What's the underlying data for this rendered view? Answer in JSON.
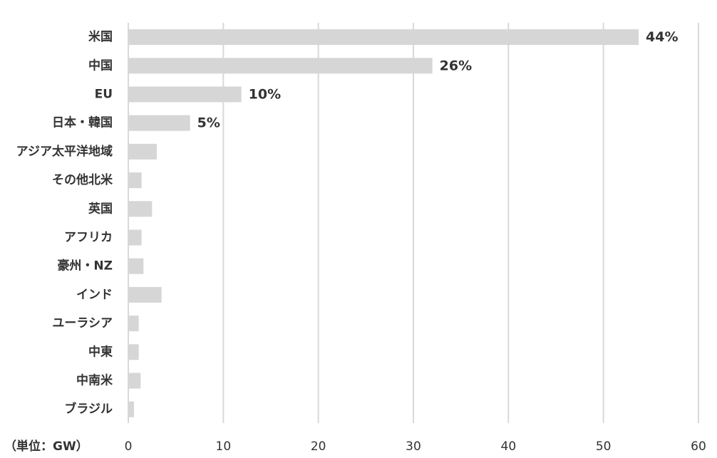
{
  "chart_data": {
    "type": "bar",
    "orientation": "horizontal",
    "categories": [
      "米国",
      "中国",
      "EU",
      "日本・韓国",
      "アジア太平洋地域",
      "その他北米",
      "英国",
      "アフリカ",
      "豪州・NZ",
      "インド",
      "ユーラシア",
      "中東",
      "中南米",
      "ブラジル"
    ],
    "values": [
      53.7,
      32,
      11.9,
      6.5,
      3,
      1.4,
      2.5,
      1.4,
      1.6,
      3.5,
      1.1,
      1.1,
      1.3,
      0.6
    ],
    "data_labels": [
      "44%",
      "26%",
      "10%",
      "5%",
      "",
      "",
      "",
      "",
      "",
      "",
      "",
      "",
      "",
      ""
    ],
    "x_ticks": [
      "0",
      "10",
      "20",
      "30",
      "40",
      "50",
      "60"
    ],
    "xlim": [
      0,
      60
    ],
    "unit_label": "（単位：GW）",
    "grid": true,
    "legend": "none",
    "colors": {
      "bar": "#d6d6d6",
      "grid": "#d9d9d9",
      "text": "#333333"
    }
  }
}
